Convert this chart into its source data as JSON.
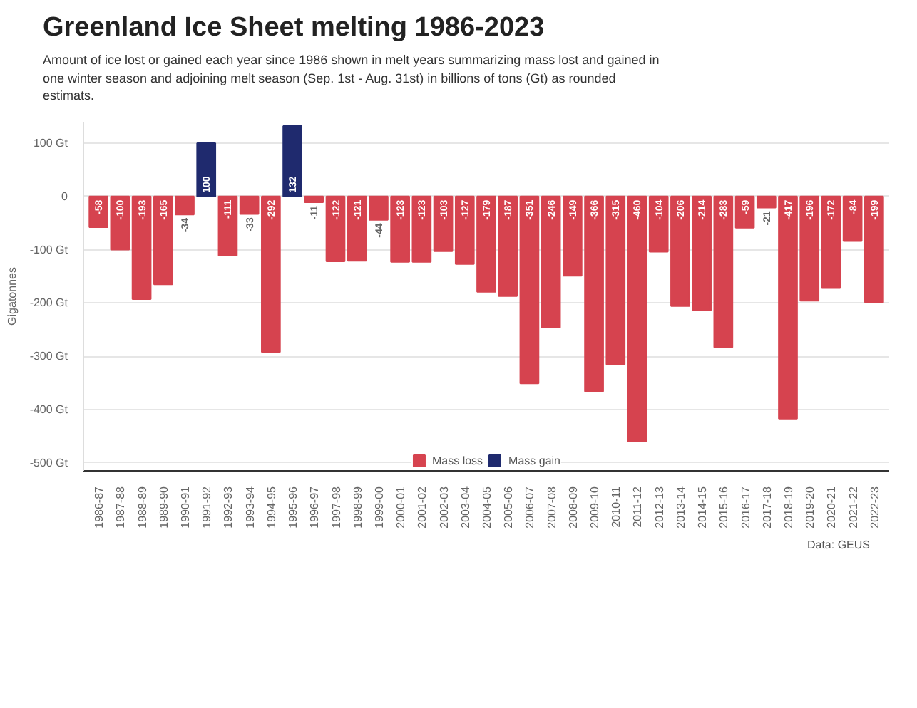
{
  "chart_data": {
    "type": "bar",
    "title": "Greenland Ice Sheet melting 1986-2023",
    "subtitle": "Amount of ice lost or gained each year since 1986 shown in melt years summarizing mass lost and gained in one winter season and adjoining melt season (Sep. 1st - Aug. 31st) in billions of tons (Gt) as rounded estimats.",
    "ylabel": "Gigatonnes",
    "categories": [
      "1986-87",
      "1987-88",
      "1988-89",
      "1989-90",
      "1990-91",
      "1991-92",
      "1992-93",
      "1993-94",
      "1994-95",
      "1995-96",
      "1996-97",
      "1997-98",
      "1998-99",
      "1999-00",
      "2000-01",
      "2001-02",
      "2002-03",
      "2003-04",
      "2004-05",
      "2005-06",
      "2006-07",
      "2007-08",
      "2008-09",
      "2009-10",
      "2010-11",
      "2011-12",
      "2012-13",
      "2013-14",
      "2014-15",
      "2015-16",
      "2016-17",
      "2017-18",
      "2018-19",
      "2019-20",
      "2020-21",
      "2021-22",
      "2022-23"
    ],
    "series": [
      {
        "name": "Mass loss",
        "color": "#d6434f",
        "values": [
          -58,
          -100,
          -193,
          -165,
          -34,
          null,
          -111,
          -33,
          -292,
          null,
          -11,
          -122,
          -121,
          -44,
          -123,
          -123,
          -103,
          -127,
          -179,
          -187,
          -351,
          -246,
          -149,
          -366,
          -315,
          -460,
          -104,
          -206,
          -214,
          -283,
          -59,
          -21,
          -417,
          -196,
          -172,
          -84,
          -199
        ]
      },
      {
        "name": "Mass gain",
        "color": "#1f2a6e",
        "values": [
          null,
          null,
          null,
          null,
          null,
          100,
          null,
          null,
          null,
          132,
          null,
          null,
          null,
          null,
          null,
          null,
          null,
          null,
          null,
          null,
          null,
          null,
          null,
          null,
          null,
          null,
          null,
          null,
          null,
          null,
          null,
          null,
          null,
          null,
          null,
          null,
          null
        ]
      }
    ],
    "ylim": [
      -515,
      140
    ],
    "yticks": [
      {
        "value": 100,
        "label": "100 Gt"
      },
      0,
      {
        "value": -100,
        "label": "-100 Gt"
      },
      {
        "value": -200,
        "label": "-200 Gt"
      },
      {
        "value": -300,
        "label": "-300 Gt"
      },
      {
        "value": -400,
        "label": "-400 Gt"
      },
      {
        "value": -500,
        "label": "-500 Gt"
      }
    ],
    "grid": "y",
    "legend": "bottom",
    "data_labels": true,
    "annotations": [
      "Data: GEUS"
    ]
  }
}
